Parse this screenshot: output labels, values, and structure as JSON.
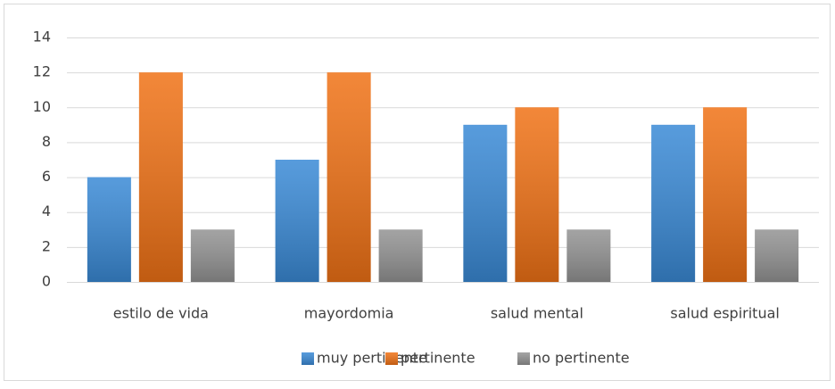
{
  "chart_data": {
    "type": "bar",
    "categories": [
      "estilo de vida",
      "mayordomia",
      "salud mental",
      "salud espiritual"
    ],
    "series": [
      {
        "name": "muy pertinente",
        "color": "#3a8ad6",
        "values": [
          6,
          7,
          9,
          9
        ]
      },
      {
        "name": "pertinente",
        "color": "#f07216",
        "values": [
          12,
          12,
          10,
          10
        ]
      },
      {
        "name": "no pertinente",
        "color": "#939393",
        "values": [
          3,
          3,
          3,
          3
        ]
      }
    ],
    "ylim": [
      0,
      14
    ],
    "yticks": [
      0,
      2,
      4,
      6,
      8,
      10,
      12,
      14
    ],
    "grid": true,
    "legend": "bottom"
  }
}
